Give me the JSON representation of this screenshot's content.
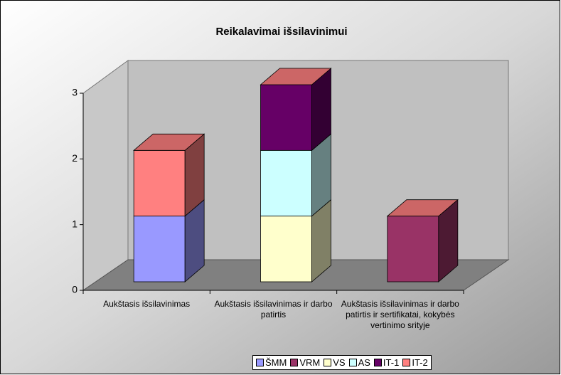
{
  "chart_data": {
    "type": "bar3d_stacked",
    "title": "Reikalavimai išsilavinimui",
    "categories": [
      "Aukštasis išsilavinimas",
      "Aukštasis išsilavinimas ir darbo patirtis",
      "Aukštasis išsilavinimas ir darbo patirtis ir sertifikatai, kokybės vertinimo srityje"
    ],
    "series": [
      {
        "name": "ŠMM",
        "color": "#9999ff",
        "values": [
          1,
          0,
          0
        ]
      },
      {
        "name": "VRM",
        "color": "#993366",
        "values": [
          0,
          0,
          1
        ]
      },
      {
        "name": "VS",
        "color": "#ffffcc",
        "values": [
          0,
          1,
          0
        ]
      },
      {
        "name": "AS",
        "color": "#ccffff",
        "values": [
          0,
          1,
          0
        ]
      },
      {
        "name": "IT-1",
        "color": "#660066",
        "values": [
          0,
          1,
          0
        ]
      },
      {
        "name": "IT-2",
        "color": "#ff8080",
        "values": [
          1,
          0,
          0
        ]
      }
    ],
    "ylim": [
      0,
      3
    ],
    "yticks": [
      0,
      1,
      2,
      3
    ],
    "legend": "bottom"
  }
}
